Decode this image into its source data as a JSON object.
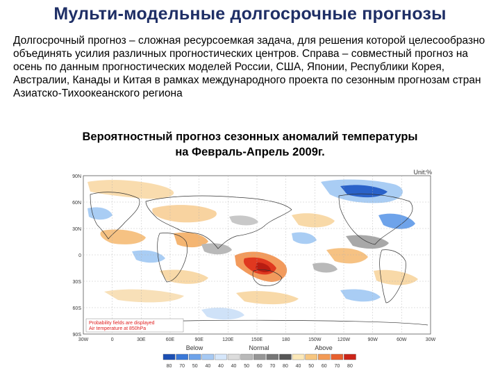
{
  "header": {
    "title": "Мульти-модельные долгосрочные прогнозы"
  },
  "intro": {
    "text": "Долгосрочный прогноз – сложная ресурсоемкая задача, для решения которой целесообразно объединять усилия различных прогностических центров. Справа – совместный прогноз на осень по данным прогностических моделей России, США, Японии, Республики Корея, Австралии, Канады и Китая в рамках международного проекта по сезонным прогнозам стран Азиатско-Тихоокеанского региона"
  },
  "map": {
    "title_line1": "Вероятностный прогноз сезонных аномалий температуры",
    "title_line2": "на Февраль-Апрель 2009г.",
    "unit": "Unit:%",
    "note_line1": "Probability fields are displayed",
    "note_line2": "Air temperature at 850hPa",
    "lat_labels": [
      "90N",
      "60N",
      "30N",
      "0",
      "30S",
      "60S",
      "90S"
    ],
    "lon_labels": [
      "30W",
      "0",
      "30E",
      "60E",
      "90E",
      "120E",
      "150E",
      "180",
      "150W",
      "120W",
      "90W",
      "60W",
      "30W"
    ],
    "legend": {
      "below_label": "Below",
      "normal_label": "Normal",
      "above_label": "Above",
      "ticks": [
        "80",
        "70",
        "50",
        "40",
        "40",
        "40",
        "50",
        "60",
        "70",
        "80",
        "40",
        "50",
        "60",
        "70",
        "80"
      ],
      "colors": [
        "#1c4fb3",
        "#3a78d8",
        "#6ea3ea",
        "#a6c9f3",
        "#d6e7fb",
        "#dcdcdc",
        "#b9b9b9",
        "#969696",
        "#767676",
        "#565656",
        "#fbe8b8",
        "#f7c680",
        "#f39a55",
        "#e8602e",
        "#cc2418"
      ]
    },
    "colors": {
      "below_strong": "#2a62c9",
      "below_light": "#a9cdf4",
      "normal": "#a8a8a8",
      "above_light": "#f8d9a8",
      "above_strong": "#e0381f"
    }
  }
}
